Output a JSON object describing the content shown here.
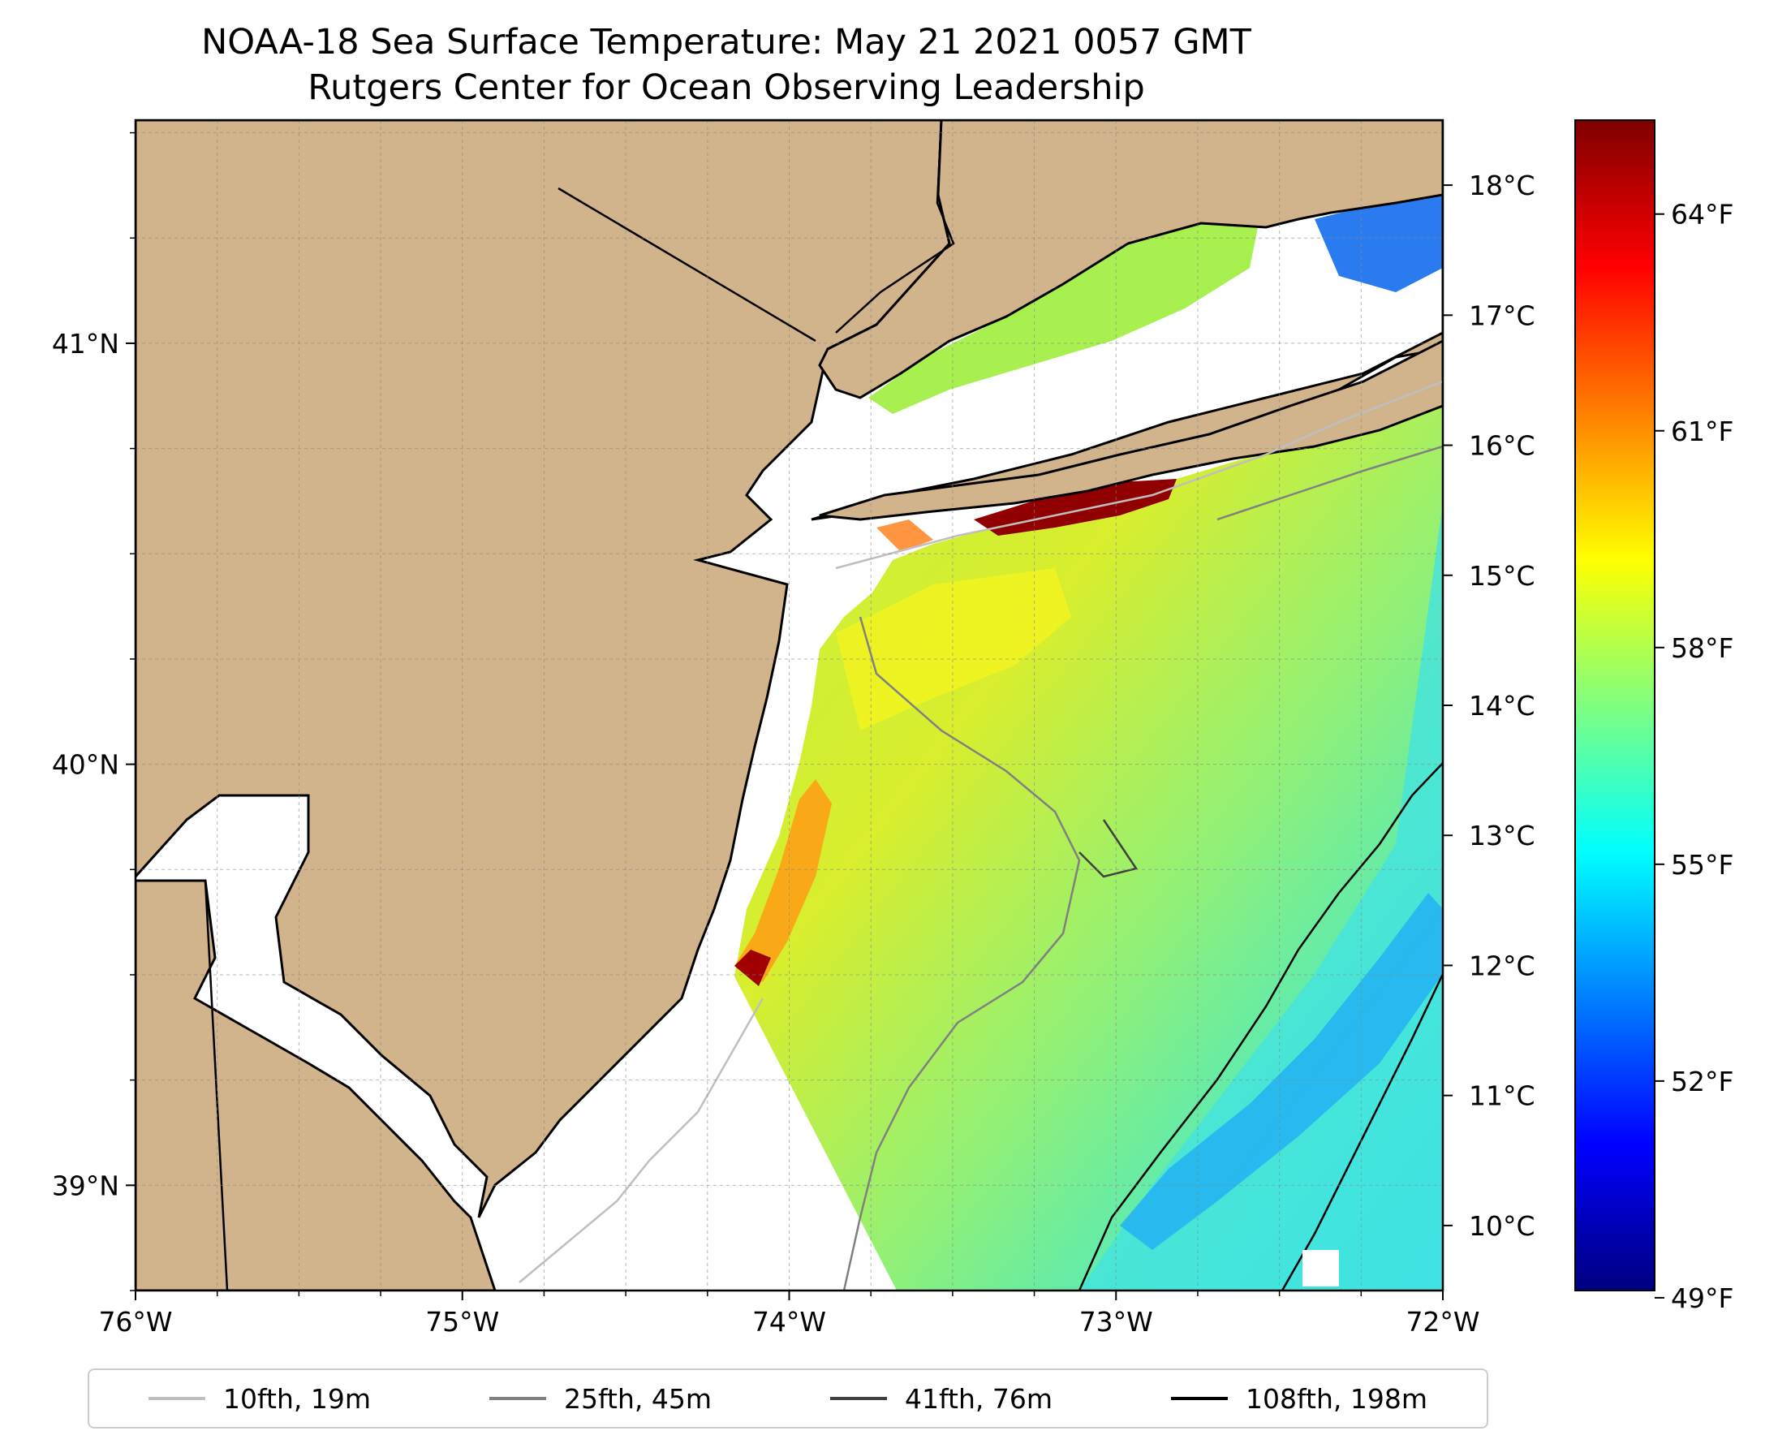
{
  "title": {
    "line1": "NOAA-18 Sea Surface Temperature: May 21 2021 0057 GMT",
    "line2": "Rutgers Center for Ocean Observing Leadership"
  },
  "map": {
    "lon_range": [
      -76,
      -72
    ],
    "lat_range": [
      38.75,
      41.53
    ],
    "lon_ticks": [
      -76,
      -75,
      -74,
      -73,
      -72
    ],
    "lon_tick_labels": [
      "76°W",
      "75°W",
      "74°W",
      "73°W",
      "72°W"
    ],
    "lat_ticks": [
      39,
      40,
      41
    ],
    "lat_tick_labels": [
      "39°N",
      "40°N",
      "41°N"
    ],
    "gridlines": true,
    "land_color": "#d2b48c",
    "no_data_color": "#ffffff"
  },
  "colorbar": {
    "colormap": "jet",
    "celsius_ticks": [
      10,
      11,
      12,
      13,
      14,
      15,
      16,
      17,
      18
    ],
    "celsius_labels": [
      "10°C",
      "11°C",
      "12°C",
      "13°C",
      "14°C",
      "15°C",
      "16°C",
      "17°C",
      "18°C"
    ],
    "fahrenheit_ticks": [
      49,
      52,
      55,
      58,
      61,
      64
    ],
    "fahrenheit_labels": [
      "49°F",
      "52°F",
      "55°F",
      "58°F",
      "61°F",
      "64°F"
    ],
    "range_c": [
      9.5,
      18.5
    ]
  },
  "legend": {
    "position": "bottom",
    "items": [
      {
        "label": "10fth, 19m",
        "color": "#bfbfbf"
      },
      {
        "label": "25fth, 45m",
        "color": "#808080"
      },
      {
        "label": "41fth, 76m",
        "color": "#404040"
      },
      {
        "label": "108fth, 198m",
        "color": "#000000"
      }
    ]
  }
}
